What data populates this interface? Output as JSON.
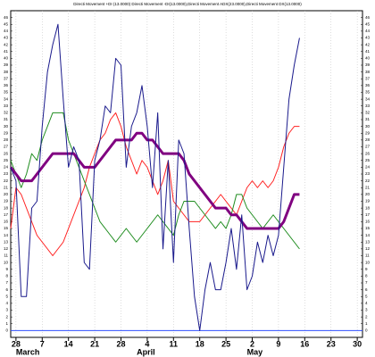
{
  "chart_data": {
    "type": "line",
    "title": "Directi Movement +DI (13.0000) Directi Movement -DI(13.0000),Directi Movement ADX(23.0000),Directi Movement DX(13.0000)",
    "x": [
      -1,
      0,
      1,
      2,
      3,
      4,
      5,
      6,
      7,
      8,
      9,
      10,
      11,
      12,
      13,
      14,
      15,
      16,
      17,
      18,
      19,
      20,
      21,
      22,
      23,
      24,
      25,
      26,
      27,
      28,
      29,
      30,
      31,
      32,
      33,
      34,
      35,
      36,
      37,
      38,
      39,
      40,
      41,
      42,
      43,
      44,
      45,
      46,
      47,
      48,
      49,
      50,
      51,
      52,
      53,
      54
    ],
    "series": [
      {
        "color": "#ff2020",
        "width": 1,
        "values": [
          15,
          21,
          20,
          18,
          16,
          14,
          13,
          12,
          11,
          12,
          13,
          15,
          17,
          19,
          21,
          24,
          26,
          28,
          29,
          31,
          32,
          30,
          27,
          25,
          23,
          25,
          24,
          22,
          20,
          22,
          25,
          19,
          18,
          17,
          16,
          16,
          16,
          17,
          18,
          19,
          20,
          19,
          18,
          17,
          19,
          21,
          22,
          21,
          22,
          21,
          22,
          24,
          27,
          29,
          30,
          30
        ]
      },
      {
        "color": "#1e8c1e",
        "width": 1,
        "values": [
          25,
          23,
          21,
          23,
          26,
          25,
          28,
          30,
          32,
          32,
          32,
          28,
          26,
          24,
          22,
          20,
          18,
          16,
          15,
          14,
          13,
          14,
          15,
          14,
          13,
          14,
          15,
          16,
          17,
          16,
          15,
          14,
          17,
          19,
          19,
          19,
          18,
          17,
          16,
          15,
          16,
          15,
          17,
          20,
          20,
          18,
          17,
          16,
          15,
          16,
          17,
          16,
          15,
          14,
          13,
          12
        ]
      },
      {
        "color": "#800080",
        "width": 3,
        "values": [
          24,
          23,
          22,
          22,
          22,
          23,
          24,
          25,
          26,
          26,
          26,
          26,
          26,
          25,
          24,
          24,
          24,
          25,
          26,
          27,
          28,
          28,
          28,
          28,
          29,
          29,
          28,
          28,
          27,
          26,
          26,
          26,
          26,
          25,
          23,
          22,
          21,
          20,
          19,
          18,
          18,
          18,
          17,
          17,
          16,
          15,
          15,
          15,
          15,
          15,
          15,
          15,
          16,
          18,
          20,
          20
        ]
      },
      {
        "color": "#1a1a8c",
        "width": 1,
        "values": [
          24,
          22,
          5,
          5,
          18,
          19,
          30,
          38,
          42,
          45,
          34,
          24,
          27,
          25,
          10,
          9,
          25,
          28,
          33,
          32,
          40,
          39,
          24,
          30,
          32,
          36,
          30,
          21,
          32,
          12,
          25,
          10,
          28,
          26,
          15,
          5,
          0,
          6,
          10,
          6,
          6,
          10,
          15,
          9,
          17,
          6,
          8,
          13,
          10,
          14,
          11,
          14,
          24,
          34,
          39,
          43
        ]
      }
    ],
    "xlim": [
      -1,
      66
    ],
    "ylim": [
      -1,
      47
    ],
    "xticks": [
      {
        "value": 0,
        "label": "28"
      },
      {
        "value": 5,
        "label": "7"
      },
      {
        "value": 10,
        "label": "14"
      },
      {
        "value": 15,
        "label": "21"
      },
      {
        "value": 20,
        "label": "28"
      },
      {
        "value": 25,
        "label": "4"
      },
      {
        "value": 30,
        "label": "11"
      },
      {
        "value": 35,
        "label": "18"
      },
      {
        "value": 40,
        "label": "25"
      },
      {
        "value": 45,
        "label": "2"
      },
      {
        "value": 50,
        "label": "9"
      },
      {
        "value": 55,
        "label": "16"
      },
      {
        "value": 60,
        "label": "23"
      },
      {
        "value": 65,
        "label": "30"
      }
    ],
    "yticks": [
      0,
      1,
      2,
      3,
      4,
      5,
      6,
      7,
      8,
      9,
      10,
      11,
      12,
      13,
      14,
      15,
      16,
      17,
      18,
      19,
      20,
      21,
      22,
      23,
      24,
      25,
      26,
      27,
      28,
      29,
      30,
      31,
      32,
      33,
      34,
      35,
      36,
      37,
      38,
      39,
      40,
      41,
      42,
      43,
      44,
      45,
      46
    ],
    "months": [
      {
        "label": "March",
        "x": 0
      },
      {
        "label": "April",
        "x": 23
      },
      {
        "label": "May",
        "x": 44
      }
    ],
    "hline": {
      "value": 0,
      "color": "#3050ff"
    },
    "grid": true
  }
}
